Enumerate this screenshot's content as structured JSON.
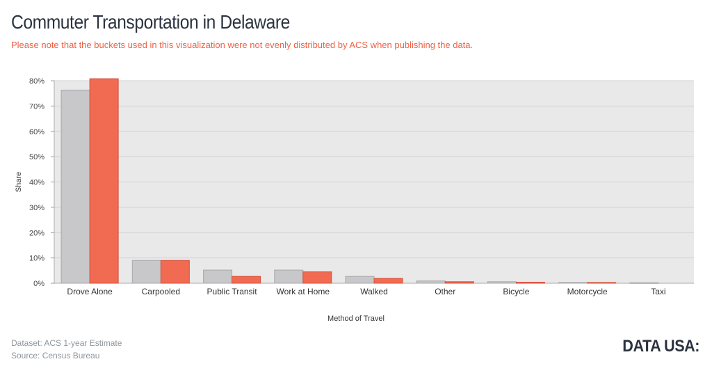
{
  "title": "Commuter Transportation in Delaware",
  "subtitle": "Please note that the buckets used in this visualization were not evenly distributed by ACS when publishing the data.",
  "footer": {
    "dataset": "Dataset: ACS 1-year Estimate",
    "source": "Source: Census Bureau"
  },
  "logo_text": "DATA USA:",
  "colors": {
    "series_a": "#c8c8cb",
    "series_a_stroke": "#a8a8ac",
    "series_b": "#f16a52",
    "series_b_stroke": "#d4503a",
    "plot_bg": "#e9e9e9",
    "grid": "#d2d2d2"
  },
  "chart_data": {
    "type": "bar",
    "xlabel": "Method of Travel",
    "ylabel": "Share",
    "ylim": [
      0,
      0.8
    ],
    "yticks": [
      "0%",
      "10%",
      "20%",
      "30%",
      "40%",
      "50%",
      "60%",
      "70%",
      "80%"
    ],
    "grid": true,
    "categories": [
      "Drove Alone",
      "Carpooled",
      "Public Transit",
      "Work at Home",
      "Walked",
      "Other",
      "Bicycle",
      "Motorcycle",
      "Taxi"
    ],
    "series": [
      {
        "values": [
          0.763,
          0.09,
          0.052,
          0.052,
          0.027,
          0.009,
          0.006,
          0.003,
          0.002
        ]
      },
      {
        "values": [
          0.808,
          0.09,
          0.027,
          0.045,
          0.019,
          0.006,
          0.004,
          0.003,
          0.0
        ]
      }
    ]
  }
}
